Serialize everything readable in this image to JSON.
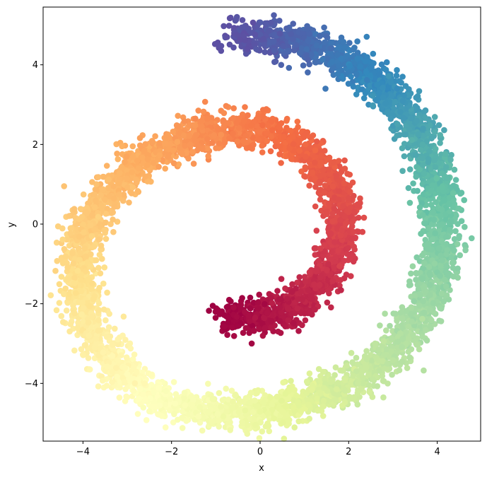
{
  "chart_data": {
    "type": "scatter",
    "title": "",
    "xlabel": "x",
    "ylabel": "y",
    "xlim": [
      -4.9,
      4.98
    ],
    "ylim": [
      -5.45,
      5.45
    ],
    "xticks": [
      -4,
      -2,
      0,
      2,
      4
    ],
    "yticks": [
      -4,
      -2,
      0,
      2,
      4
    ],
    "xtick_labels": [
      "−4",
      "−2",
      "0",
      "2",
      "4"
    ],
    "ytick_labels": [
      "−4",
      "−2",
      "0",
      "2",
      "4"
    ],
    "grid": false,
    "colormap": "Spectral",
    "colormap_stops": [
      "#9e0142",
      "#d53e4f",
      "#f46d43",
      "#fdae61",
      "#fee08b",
      "#ffffbf",
      "#e6f598",
      "#abdda4",
      "#66c2a5",
      "#3288bd",
      "#5e4fa2"
    ],
    "spiral": {
      "description_of_shape": "Archimedean spiral, color varies with position along the curve (red at inner end near (-0.5,-2.3), purple at outer end near (-0.5,4.7))",
      "centerline": [
        [
          -0.8,
          -2.3
        ],
        [
          -0.4,
          -2.35
        ],
        [
          0.0,
          -2.35
        ],
        [
          0.4,
          -2.25
        ],
        [
          0.8,
          -2.05
        ],
        [
          1.2,
          -1.7
        ],
        [
          1.5,
          -1.25
        ],
        [
          1.75,
          -0.7
        ],
        [
          1.9,
          -0.1
        ],
        [
          1.85,
          0.5
        ],
        [
          1.65,
          1.05
        ],
        [
          1.3,
          1.6
        ],
        [
          0.85,
          2.0
        ],
        [
          0.3,
          2.3
        ],
        [
          -0.3,
          2.4
        ],
        [
          -1.0,
          2.35
        ],
        [
          -1.7,
          2.15
        ],
        [
          -2.4,
          1.8
        ],
        [
          -3.0,
          1.25
        ],
        [
          -3.5,
          0.6
        ],
        [
          -3.9,
          -0.1
        ],
        [
          -4.05,
          -0.9
        ],
        [
          -4.05,
          -1.8
        ],
        [
          -3.85,
          -2.6
        ],
        [
          -3.45,
          -3.35
        ],
        [
          -2.9,
          -3.95
        ],
        [
          -2.2,
          -4.4
        ],
        [
          -1.4,
          -4.65
        ],
        [
          -0.5,
          -4.7
        ],
        [
          0.4,
          -4.6
        ],
        [
          1.3,
          -4.35
        ],
        [
          2.1,
          -3.95
        ],
        [
          2.8,
          -3.4
        ],
        [
          3.35,
          -2.75
        ],
        [
          3.75,
          -1.95
        ],
        [
          4.0,
          -1.1
        ],
        [
          4.1,
          -0.2
        ],
        [
          4.05,
          0.7
        ],
        [
          3.85,
          1.6
        ],
        [
          3.5,
          2.45
        ],
        [
          3.0,
          3.2
        ],
        [
          2.4,
          3.8
        ],
        [
          1.7,
          4.25
        ],
        [
          0.9,
          4.55
        ],
        [
          0.2,
          4.7
        ],
        [
          -0.6,
          4.75
        ]
      ],
      "point_count": 6000,
      "noise_std": 0.22
    }
  }
}
